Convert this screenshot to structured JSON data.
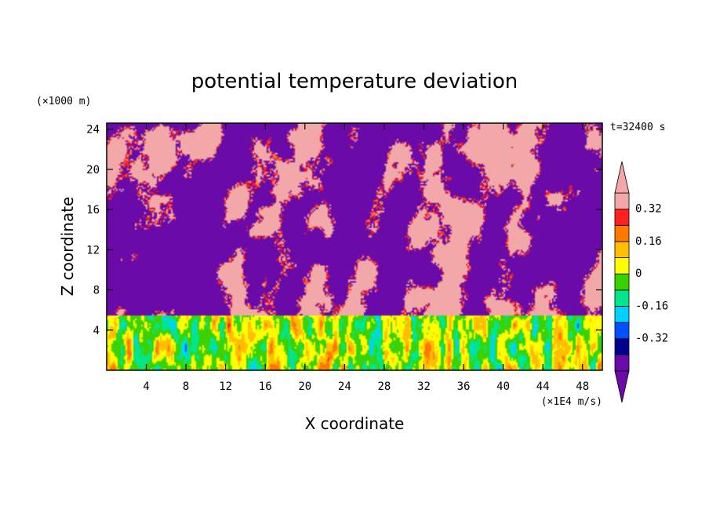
{
  "chart_data": {
    "type": "heatmap",
    "title": "potential temperature deviation",
    "xlabel": "X coordinate",
    "ylabel": "Z coordinate",
    "x_unit": "(×1E4 m/s)",
    "y_unit": "(×1000 m)",
    "time_label": "t=32400 s",
    "xlim": [
      0,
      50
    ],
    "ylim": [
      0,
      24.6
    ],
    "x_ticks": [
      "4",
      "8",
      "12",
      "16",
      "20",
      "24",
      "28",
      "32",
      "36",
      "40",
      "44",
      "48"
    ],
    "y_ticks": [
      "4",
      "8",
      "12",
      "16",
      "20",
      "24"
    ],
    "colorbar": {
      "levels": [
        -0.4,
        -0.32,
        -0.24,
        -0.16,
        -0.08,
        0,
        0.08,
        0.16,
        0.24,
        0.32,
        0.4
      ],
      "labeled_levels": [
        "0.32",
        "0.16",
        "0",
        "-0.16",
        "-0.32"
      ],
      "colors": [
        "#6a0aa8",
        "#00008c",
        "#0050ff",
        "#00d2ff",
        "#00e68c",
        "#3cd200",
        "#ffff00",
        "#ffbe00",
        "#ff7800",
        "#ff2020",
        "#f2a8a8"
      ],
      "extend": "both"
    },
    "regions": {
      "upper_layer_z": [
        5.5,
        24.6
      ],
      "upper_layer_values": "alternating pink (> 0.4) and purple (< -0.4) plumes",
      "lower_layer_z": [
        0,
        5.5
      ],
      "lower_layer_values": "fine-scale mix from -0.16 to 0.32 (cyan, green, yellow, red)"
    },
    "grid": false,
    "colorbar_placement": "right"
  }
}
